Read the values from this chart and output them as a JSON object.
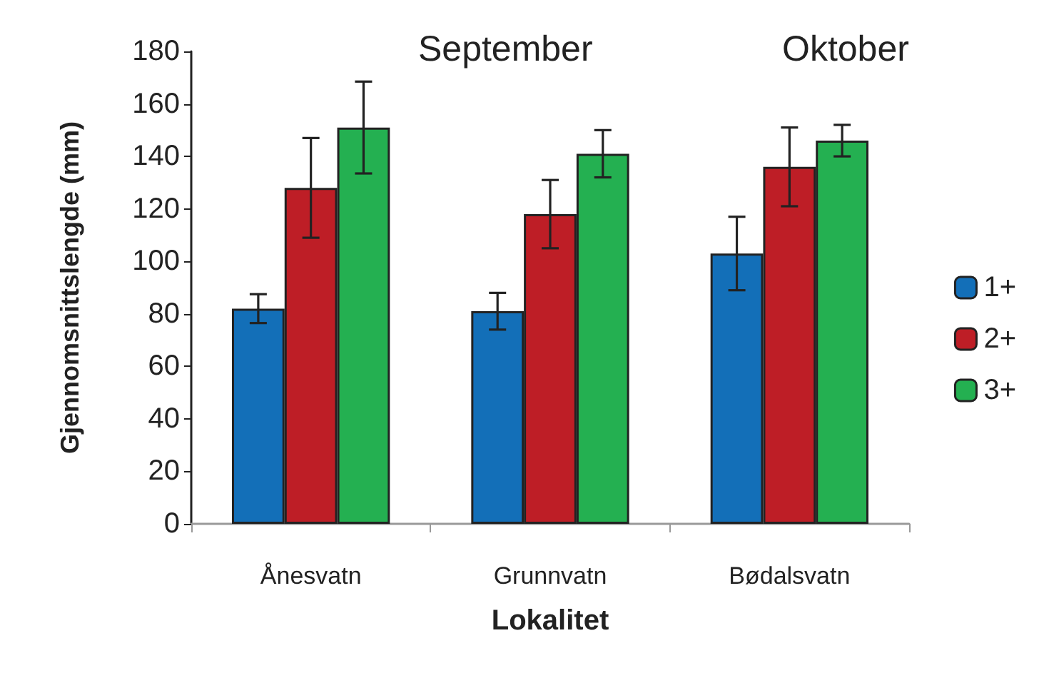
{
  "chart_data": {
    "type": "bar",
    "xlabel": "Lokalitet",
    "ylabel": "Gjennomsnittslengde (mm)",
    "annotations": [
      "September",
      "Oktober"
    ],
    "categories": [
      "Ånesvatn",
      "Grunnvatn",
      "Bødalsvatn"
    ],
    "series": [
      {
        "name": "1+",
        "color": "#136fb8",
        "values": [
          82,
          81,
          103
        ],
        "errors": [
          5.5,
          7,
          14
        ]
      },
      {
        "name": "2+",
        "color": "#be1e26",
        "values": [
          128,
          118,
          136
        ],
        "errors": [
          19,
          13,
          15
        ]
      },
      {
        "name": "3+",
        "color": "#24b051",
        "values": [
          151,
          141,
          146
        ],
        "errors": [
          17.5,
          9,
          6
        ]
      }
    ],
    "ylim": [
      0,
      180
    ],
    "yticks": [
      0,
      20,
      40,
      60,
      80,
      100,
      120,
      140,
      160,
      180
    ],
    "grid": false,
    "legend": "right"
  }
}
